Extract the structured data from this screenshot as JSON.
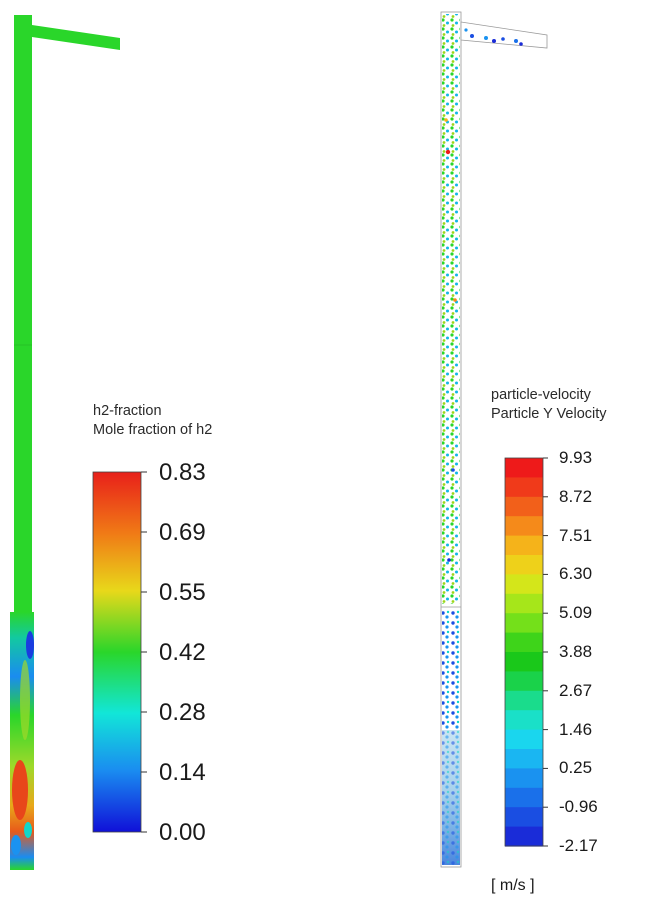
{
  "left_panel": {
    "legend": {
      "title_line1": "h2-fraction",
      "title_line2": "Mole fraction of h2",
      "ticks": [
        "0.83",
        "0.69",
        "0.55",
        "0.42",
        "0.28",
        "0.14",
        "0.00"
      ],
      "colormap": [
        "#e8201a",
        "#f07a16",
        "#e8d81a",
        "#2ad62a",
        "#12e6d8",
        "#1a8cf0",
        "#1010d8"
      ]
    }
  },
  "right_panel": {
    "legend": {
      "title_line1": "particle-velocity",
      "title_line2": "Particle Y Velocity",
      "ticks": [
        "9.93",
        "8.72",
        "7.51",
        "6.30",
        "5.09",
        "3.88",
        "2.67",
        "1.46",
        "0.25",
        "-0.96",
        "-2.17"
      ],
      "unit": "[ m/s ]",
      "bands": [
        "#ee1a1a",
        "#f03a1a",
        "#f2601a",
        "#f58a1a",
        "#f5b31a",
        "#eed11a",
        "#d4e61a",
        "#a6e61a",
        "#74e01a",
        "#3ed41a",
        "#1ac81a",
        "#1ad24a",
        "#1adc8c",
        "#1ae0c8",
        "#1ad6ee",
        "#1ab6f2",
        "#1a92f0",
        "#1a70ea",
        "#1a4ee2",
        "#1a2cd8"
      ]
    }
  }
}
